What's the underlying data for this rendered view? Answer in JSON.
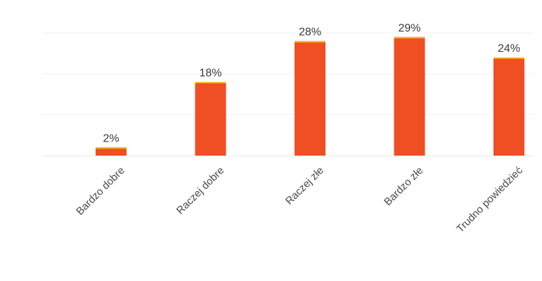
{
  "chart_data": {
    "type": "bar",
    "title": "",
    "xlabel": "",
    "ylabel": "",
    "categories": [
      "Bardzo dobre",
      "Raczej dobre",
      "Raczej złe",
      "Bardzo złe",
      "Trudno powiedzieć"
    ],
    "values": [
      2,
      18,
      28,
      29,
      24
    ],
    "data_labels": [
      "2%",
      "18%",
      "28%",
      "29%",
      "24%"
    ],
    "unit": "%",
    "ylim": [
      0,
      30
    ],
    "grid": true,
    "legend": "none",
    "colors": {
      "bar": "#f04e23",
      "bar_top": "#f5b21a"
    }
  }
}
